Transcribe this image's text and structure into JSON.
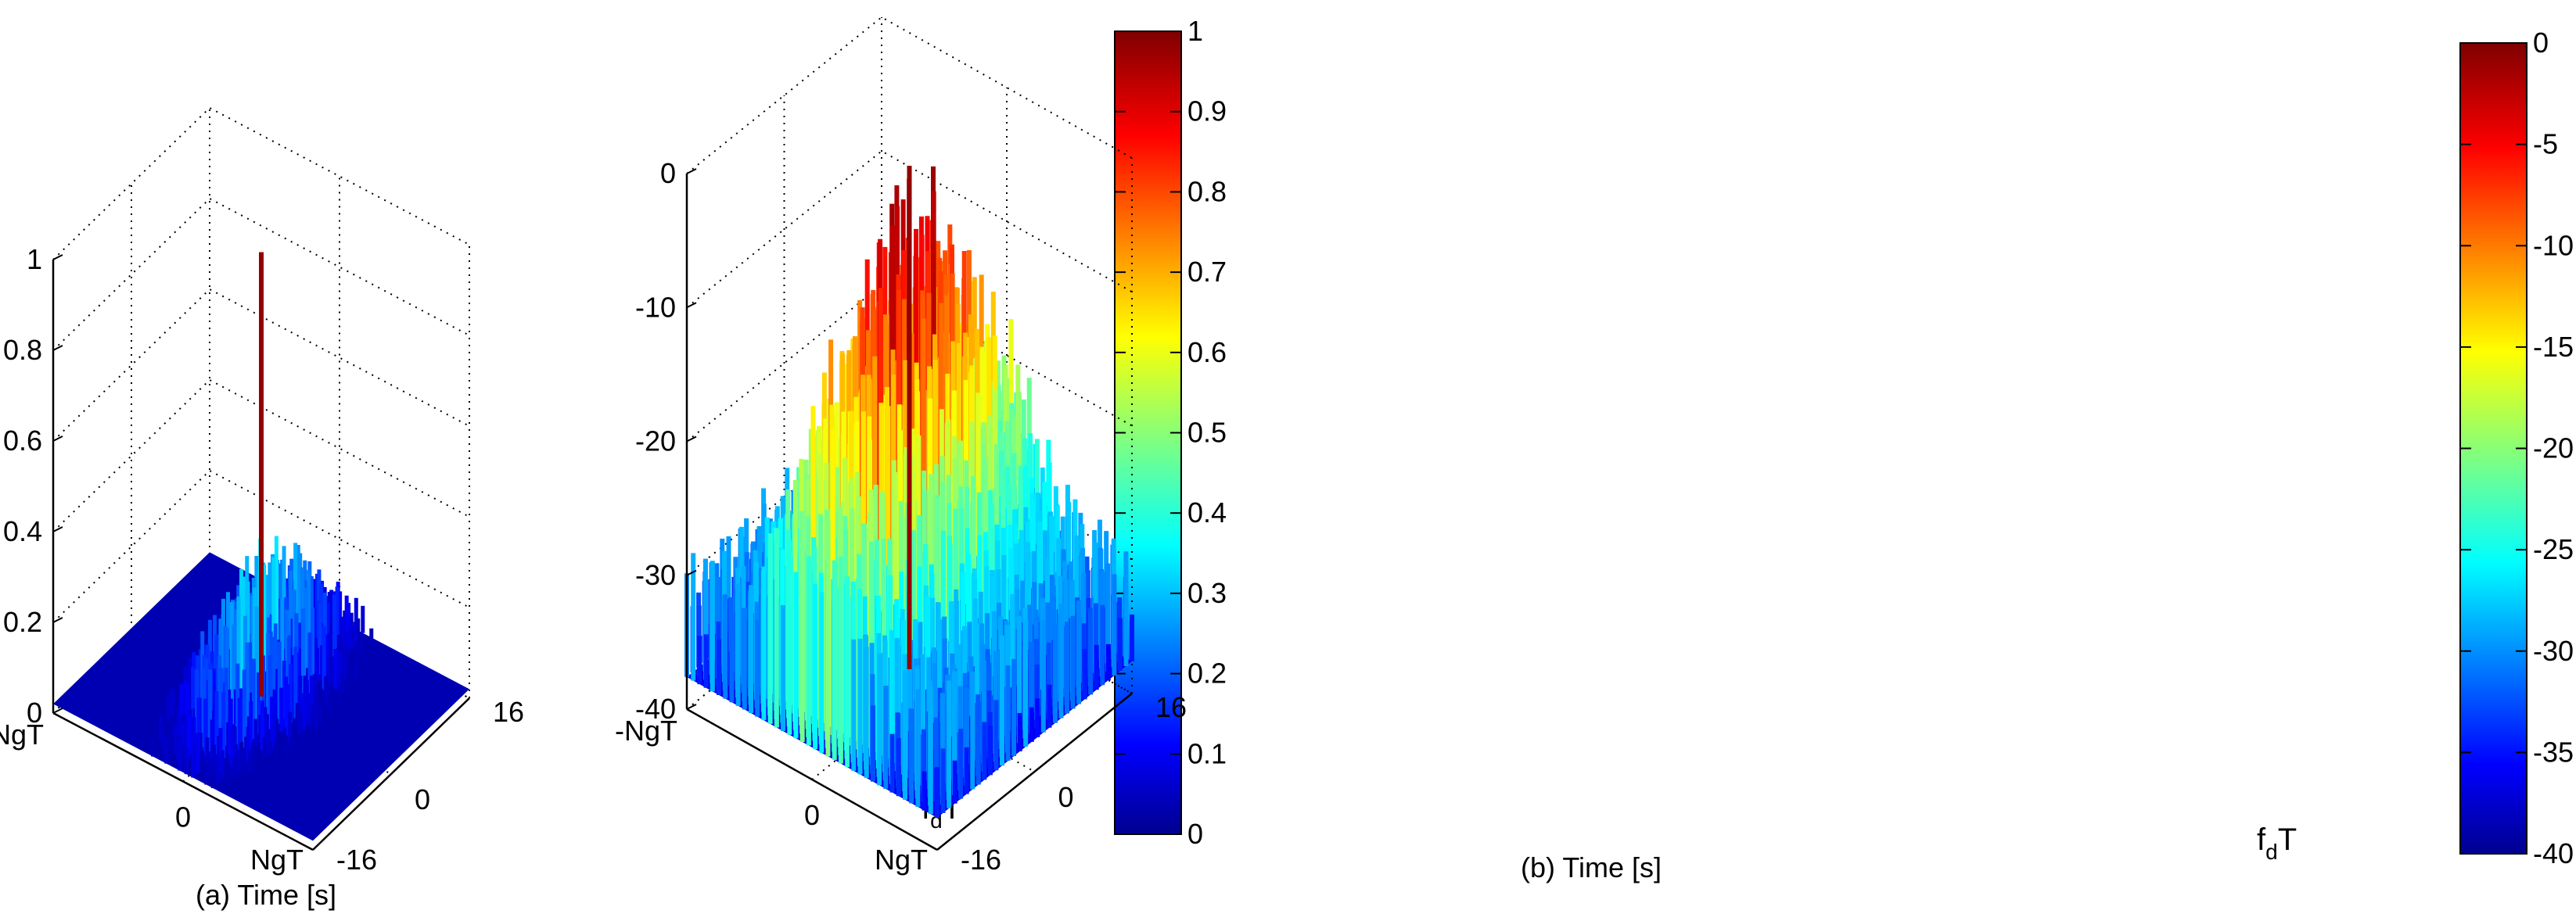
{
  "chart_data": [
    {
      "type": "surface",
      "panel": "a",
      "title": "",
      "xlabel": "(a) Time [s]",
      "ylabel_main": "f",
      "ylabel_sub": "d",
      "ylabel_tail": "T",
      "zlabel": "",
      "xticks": [
        "-NgT",
        "0",
        "NgT"
      ],
      "yticks": [
        "-16",
        "0",
        "16"
      ],
      "zticks": [
        "0",
        "0.2",
        "0.4",
        "0.6",
        "0.8",
        "1"
      ],
      "zlim": [
        0,
        1
      ],
      "colorbar": {
        "min": 0,
        "max": 1,
        "ticks": [
          "0",
          "0.1",
          "0.2",
          "0.3",
          "0.4",
          "0.5",
          "0.6",
          "0.7",
          "0.8",
          "0.9",
          "1"
        ]
      },
      "peak": {
        "time": 0,
        "fdT": 0,
        "value": 1
      },
      "grid": true,
      "colormap": "jet"
    },
    {
      "type": "surface",
      "panel": "b",
      "title": "",
      "xlabel": "(b) Time [s]",
      "ylabel_main": "f",
      "ylabel_sub": "d",
      "ylabel_tail": "T",
      "zlabel": "",
      "xticks": [
        "-NgT",
        "0",
        "NgT"
      ],
      "yticks": [
        "-16",
        "0",
        "16"
      ],
      "zticks": [
        "-40",
        "-30",
        "-20",
        "-10",
        "0"
      ],
      "zlim": [
        -40,
        0
      ],
      "colorbar": {
        "min": -40,
        "max": 0,
        "ticks": [
          "-40",
          "-35",
          "-30",
          "-25",
          "-20",
          "-15",
          "-10",
          "-5",
          "0"
        ]
      },
      "peak": {
        "time": 0,
        "fdT": 0,
        "value": 0
      },
      "grid": true,
      "colormap": "jet"
    }
  ]
}
